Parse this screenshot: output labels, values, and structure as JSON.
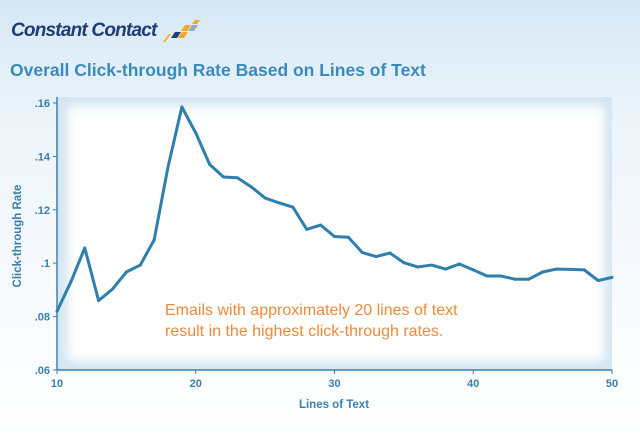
{
  "brand": {
    "name": "Constant Contact",
    "logo_colors": [
      "#f5a623",
      "#1f3b78",
      "#9aa7bd"
    ]
  },
  "chart_data": {
    "type": "line",
    "title": "Overall Click-through Rate Based on Lines of Text",
    "xlabel": "Lines of Text",
    "ylabel": "Click-through Rate",
    "xlim": [
      10,
      50
    ],
    "ylim": [
      0.06,
      0.16
    ],
    "xticks": [
      {
        "value": 10,
        "label": "10"
      },
      {
        "value": 20,
        "label": "20"
      },
      {
        "value": 30,
        "label": "30"
      },
      {
        "value": 40,
        "label": "40"
      },
      {
        "value": 50,
        "label": "50"
      }
    ],
    "yticks": [
      {
        "value": 0.06,
        "label": ".06"
      },
      {
        "value": 0.08,
        "label": ".08"
      },
      {
        "value": 0.1,
        "label": ".1"
      },
      {
        "value": 0.12,
        "label": ".12"
      },
      {
        "value": 0.14,
        "label": ".14"
      },
      {
        "value": 0.16,
        "label": ".16"
      }
    ],
    "grid": false,
    "line_color": "#2e7fae",
    "x": [
      10,
      11,
      12,
      13,
      14,
      15,
      16,
      17,
      18,
      19,
      20,
      21,
      22,
      23,
      24,
      25,
      26,
      27,
      28,
      29,
      30,
      31,
      32,
      33,
      34,
      35,
      36,
      37,
      38,
      39,
      40,
      41,
      42,
      43,
      44,
      45,
      46,
      47,
      48,
      49,
      50
    ],
    "y": [
      0.082,
      0.093,
      0.1057,
      0.086,
      0.0903,
      0.0967,
      0.0993,
      0.1087,
      0.136,
      0.1585,
      0.1488,
      0.137,
      0.1323,
      0.132,
      0.1286,
      0.1244,
      0.1226,
      0.121,
      0.1127,
      0.1143,
      0.11,
      0.1097,
      0.104,
      0.1025,
      0.1038,
      0.1002,
      0.0986,
      0.0993,
      0.0978,
      0.0997,
      0.0975,
      0.0952,
      0.0952,
      0.094,
      0.094,
      0.0967,
      0.0978,
      0.0977,
      0.0975,
      0.0935,
      0.0947
    ],
    "annotation": [
      "Emails with approximately 20 lines of text",
      "result in the highest click-through rates."
    ],
    "annotation_color": "#ec8a3c"
  }
}
